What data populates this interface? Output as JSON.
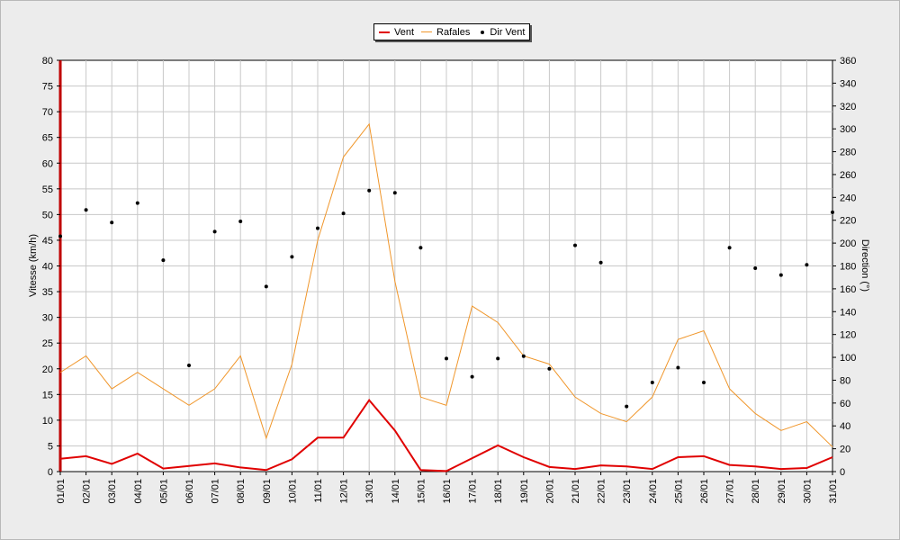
{
  "colors": {
    "vent": "#e00000",
    "rafales": "#f0962a",
    "dir": "#000000",
    "plot_bg": "#ffffff",
    "grid": "#c8c8c8",
    "left_bar": "#c00000"
  },
  "legend": {
    "vent": "Vent",
    "rafales": "Rafales",
    "dir": "Dir Vent"
  },
  "chart_data": {
    "type": "line",
    "categories": [
      "01/01",
      "02/01",
      "03/01",
      "04/01",
      "05/01",
      "06/01",
      "07/01",
      "08/01",
      "09/01",
      "10/01",
      "11/01",
      "12/01",
      "13/01",
      "14/01",
      "15/01",
      "16/01",
      "17/01",
      "18/01",
      "19/01",
      "20/01",
      "21/01",
      "22/01",
      "23/01",
      "24/01",
      "25/01",
      "26/01",
      "27/01",
      "28/01",
      "29/01",
      "30/01",
      "31/01"
    ],
    "ylabel": "Vitesse (km/h)",
    "y2label": "Direction (°)",
    "ylim": [
      0,
      80
    ],
    "y2lim": [
      0,
      360
    ],
    "yticks": [
      0,
      5,
      10,
      15,
      20,
      25,
      30,
      35,
      40,
      45,
      50,
      55,
      60,
      65,
      70,
      75,
      80
    ],
    "y2ticks": [
      0,
      20,
      40,
      60,
      80,
      100,
      120,
      140,
      160,
      180,
      200,
      220,
      240,
      260,
      280,
      300,
      320,
      340,
      360
    ],
    "grid": true,
    "legend_position": "top-center",
    "series": [
      {
        "name": "Vent",
        "axis": "left",
        "style": "line",
        "values": [
          2.5,
          3.0,
          1.5,
          3.5,
          0.6,
          1.1,
          1.6,
          0.8,
          0.3,
          2.4,
          6.6,
          6.6,
          13.9,
          8.0,
          0.3,
          0.1,
          2.6,
          5.1,
          2.8,
          0.9,
          0.5,
          1.2,
          1.0,
          0.5,
          2.8,
          3.0,
          1.3,
          1.0,
          0.5,
          0.7,
          2.8
        ]
      },
      {
        "name": "Rafales",
        "axis": "left",
        "style": "line",
        "values": [
          19.3,
          22.5,
          16.1,
          19.3,
          16.1,
          12.9,
          16.1,
          22.5,
          6.5,
          20.9,
          45.0,
          61.2,
          67.6,
          37.0,
          14.5,
          12.9,
          32.2,
          29.0,
          22.5,
          20.9,
          14.5,
          11.3,
          9.7,
          14.5,
          25.7,
          27.4,
          16.1,
          11.3,
          8.0,
          9.7,
          4.8
        ]
      },
      {
        "name": "Dir Vent",
        "axis": "right",
        "style": "points",
        "values": [
          206,
          229,
          218,
          235,
          185,
          93,
          210,
          219,
          162,
          188,
          213,
          226,
          246,
          244,
          196,
          99,
          83,
          99,
          101,
          90,
          198,
          183,
          57,
          78,
          91,
          78,
          196,
          178,
          172,
          181,
          227
        ]
      }
    ]
  }
}
